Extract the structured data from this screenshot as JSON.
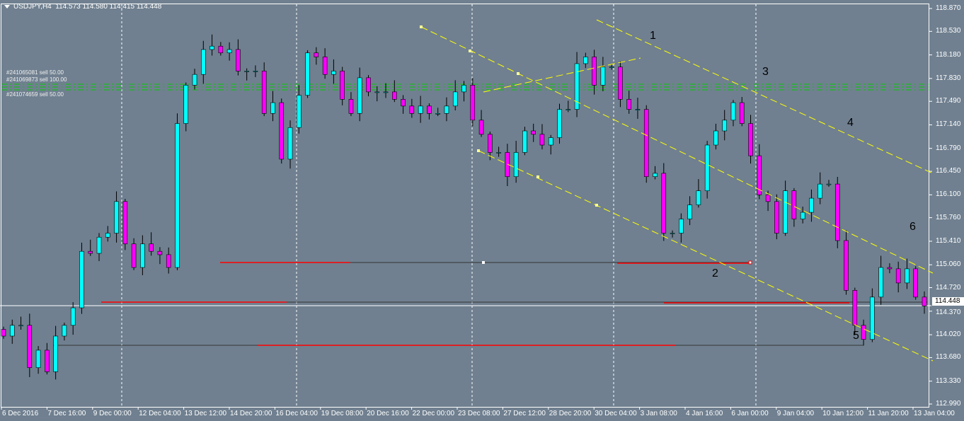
{
  "header": {
    "symbol": "USDJPY,H4",
    "ohlc": "114.573 114.580 114.415 114.448"
  },
  "orders": [
    "#241065081 sell 50.00",
    "#241069873 sell 100.00",
    "#241074659 sell 50.00"
  ],
  "current_price": "114.448",
  "price_axis": [
    "118.870",
    "118.530",
    "118.180",
    "117.830",
    "117.490",
    "117.140",
    "116.790",
    "116.450",
    "116.100",
    "115.760",
    "115.410",
    "115.060",
    "114.720",
    "114.370",
    "114.020",
    "113.680",
    "113.330",
    "112.990"
  ],
  "time_axis": [
    "6 Dec 2016",
    "7 Dec 16:00",
    "9 Dec 00:00",
    "12 Dec 04:00",
    "13 Dec 12:00",
    "14 Dec 20:00",
    "16 Dec 04:00",
    "19 Dec 08:00",
    "20 Dec 16:00",
    "22 Dec 00:00",
    "23 Dec 08:00",
    "27 Dec 12:00",
    "28 Dec 20:00",
    "30 Dec 04:00",
    "3 Jan 08:00",
    "4 Jan 16:00",
    "6 Jan 00:00",
    "9 Jan 04:00",
    "10 Jan 12:00",
    "11 Jan 20:00",
    "13 Jan 04:00"
  ],
  "wave_labels": [
    "1",
    "2",
    "3",
    "4",
    "5",
    "6"
  ],
  "colors": {
    "background": "#708090",
    "bull": "#00ffff",
    "bear": "#ff00ff",
    "channel": "#ffff00",
    "order_line": "#00cc00",
    "level": "#ff0000"
  },
  "chart_data": {
    "type": "candlestick",
    "ylim": [
      112.99,
      118.87
    ],
    "closes": [
      114.0,
      114.16,
      114.16,
      113.53,
      113.79,
      113.47,
      114.0,
      114.16,
      114.42,
      115.26,
      115.23,
      115.47,
      115.53,
      116.0,
      115.37,
      115.02,
      115.37,
      115.26,
      115.21,
      115.02,
      117.16,
      117.73,
      117.89,
      118.26,
      118.31,
      118.21,
      118.26,
      117.94,
      117.94,
      117.94,
      117.31,
      117.47,
      116.63,
      117.1,
      117.58,
      118.21,
      118.15,
      117.89,
      117.94,
      117.52,
      117.31,
      117.84,
      117.63,
      117.63,
      117.63,
      117.52,
      117.42,
      117.31,
      117.42,
      117.31,
      117.31,
      117.42,
      117.63,
      117.73,
      117.21,
      117.0,
      116.73,
      116.73,
      116.37,
      116.73,
      117.05,
      117.0,
      116.84,
      116.95,
      117.37,
      117.37,
      118.05,
      118.15,
      117.73,
      118.0,
      118.0,
      117.52,
      117.37,
      117.37,
      116.37,
      116.42,
      115.53,
      115.53,
      115.74,
      115.95,
      116.16,
      116.84,
      117.05,
      117.21,
      117.47,
      117.16,
      116.68,
      116.1,
      116.0,
      115.53,
      116.16,
      115.74,
      115.84,
      116.05,
      116.26,
      116.26,
      115.42,
      114.68,
      114.16,
      113.95,
      114.58,
      115.02,
      115.0,
      114.79,
      115.0,
      114.58,
      114.448
    ]
  }
}
